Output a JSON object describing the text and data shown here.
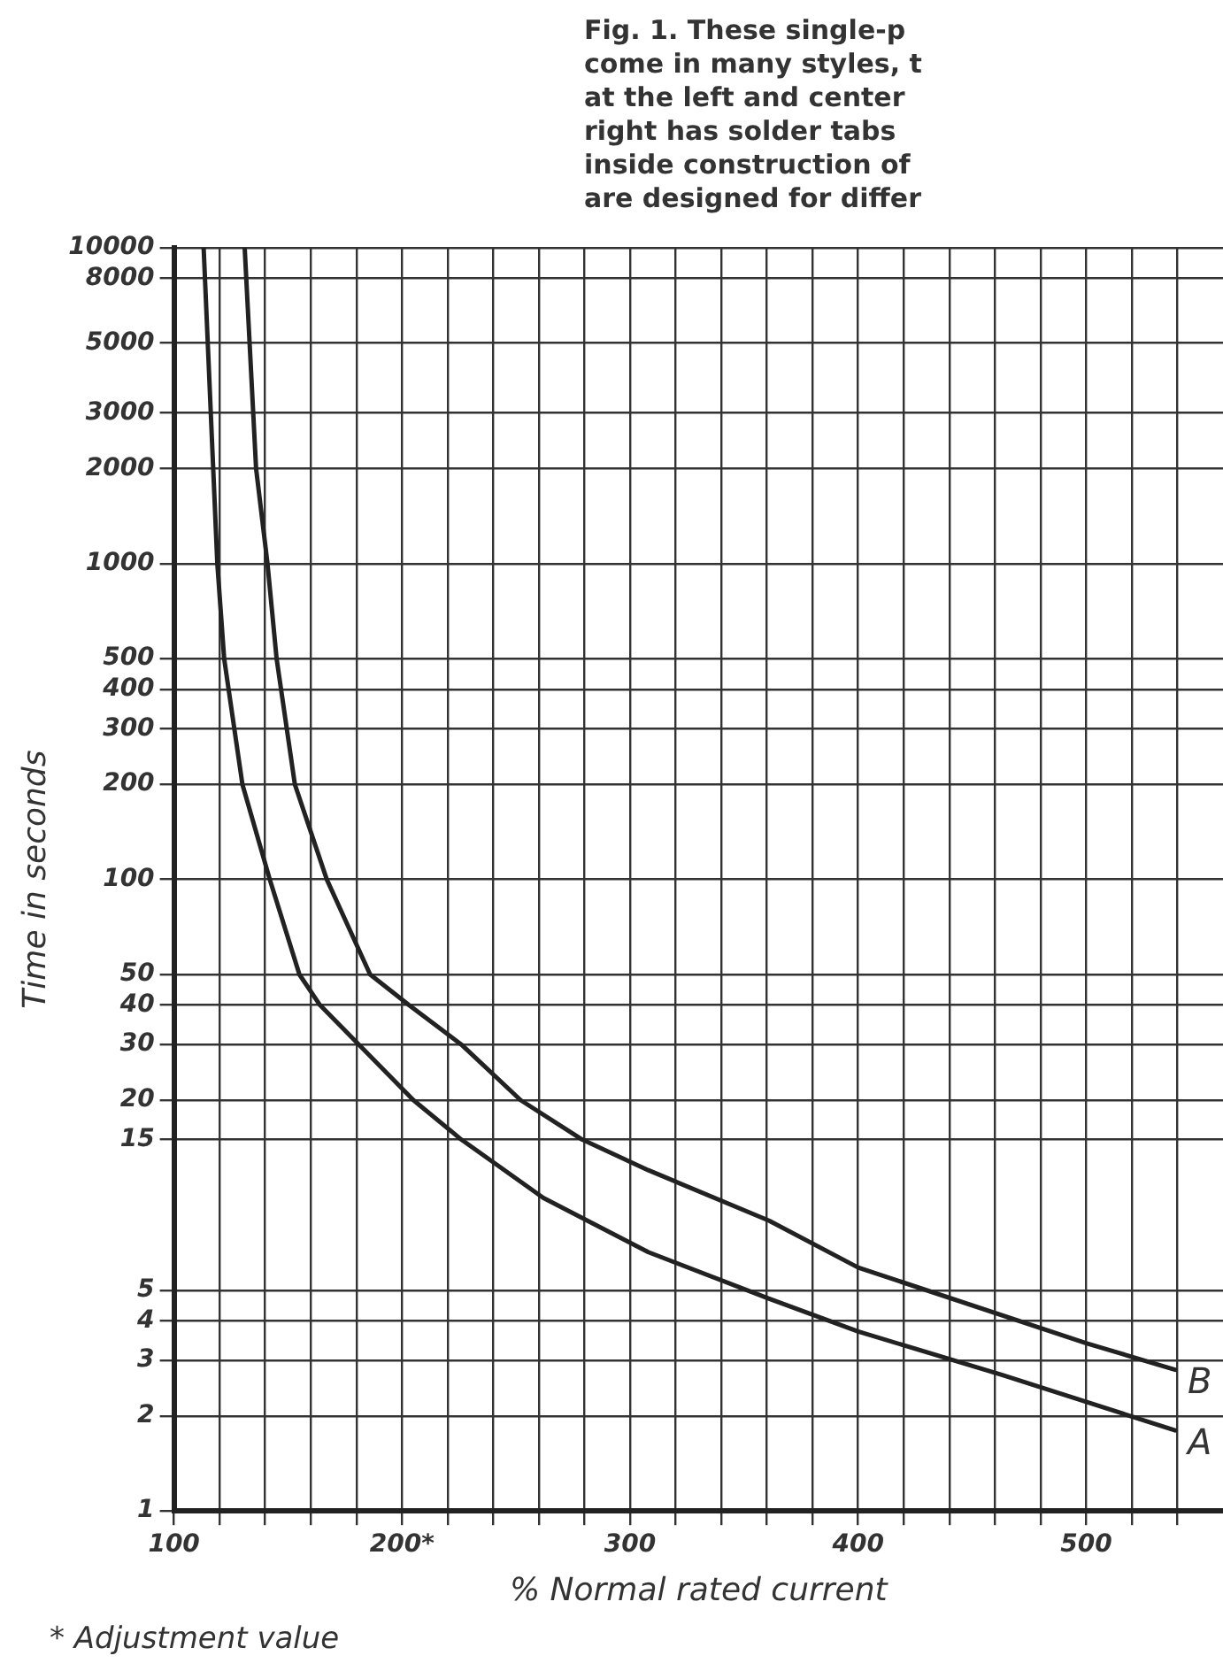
{
  "chart_data": {
    "type": "line",
    "ylabel": "Time in seconds",
    "xlabel": "% Normal rated current",
    "annotations": [
      "Fig. 1. These single-p\ncome in many styles, t\nat the left and center\nright has solder tabs\ninside construction of\nare designed for differ",
      "* Adjustment value"
    ],
    "log": "y",
    "grid": true,
    "marker": "none",
    "legend": false,
    "xlim": [
      100,
      560
    ],
    "ylim": [
      1,
      10000
    ],
    "xticks": [
      100,
      {
        "value": 120,
        "label": null
      },
      {
        "value": 140,
        "label": null
      },
      {
        "value": 160,
        "label": null
      },
      {
        "value": 180,
        "label": null
      },
      {
        "value": 200,
        "label": "200*"
      },
      {
        "value": 220,
        "label": null
      },
      {
        "value": 240,
        "label": null
      },
      {
        "value": 260,
        "label": null
      },
      {
        "value": 280,
        "label": null
      },
      300,
      {
        "value": 320,
        "label": null
      },
      {
        "value": 340,
        "label": null
      },
      {
        "value": 360,
        "label": null
      },
      {
        "value": 380,
        "label": null
      },
      400,
      {
        "value": 420,
        "label": null
      },
      {
        "value": 440,
        "label": null
      },
      {
        "value": 460,
        "label": null
      },
      {
        "value": 480,
        "label": null
      },
      500,
      {
        "value": 520,
        "label": null
      },
      {
        "value": 540,
        "label": null
      }
    ],
    "yticks": [
      1,
      2,
      3,
      4,
      5,
      15,
      20,
      30,
      40,
      50,
      100,
      200,
      300,
      400,
      500,
      1000,
      2000,
      3000,
      5000,
      8000,
      10000
    ],
    "series": [
      {
        "name": "A",
        "color": "#222222",
        "x": [
          113,
          119,
          122,
          130,
          142,
          155,
          164,
          205,
          226,
          262,
          308,
          361,
          400,
          463,
          539
        ],
        "values": [
          10000,
          1000,
          500,
          200,
          100,
          50,
          40,
          20,
          15,
          9.8,
          6.6,
          4.7,
          3.7,
          2.7,
          1.8
        ]
      },
      {
        "name": "B",
        "color": "#222222",
        "x": [
          131,
          136,
          141,
          145,
          153,
          167,
          186,
          203,
          226,
          252,
          279,
          308,
          361,
          400,
          500,
          539
        ],
        "values": [
          10000,
          2000,
          1000,
          500,
          200,
          100,
          50,
          40,
          30,
          20,
          15,
          12,
          8.3,
          5.9,
          3.4,
          2.8
        ]
      }
    ]
  }
}
